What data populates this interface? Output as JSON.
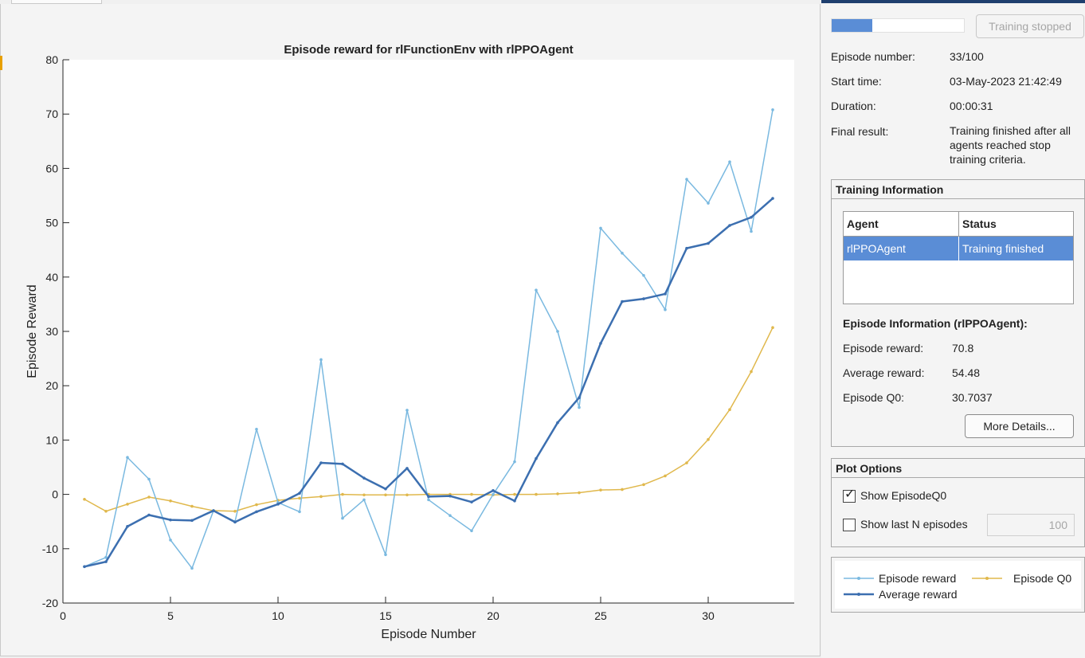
{
  "chart_data": {
    "type": "line",
    "title": "Episode reward for rlFunctionEnv with rlPPOAgent",
    "xlabel": "Episode Number",
    "ylabel": "Episode Reward",
    "xlim": [
      0,
      34
    ],
    "ylim": [
      -20,
      80
    ],
    "xticks": [
      0,
      5,
      10,
      15,
      20,
      25,
      30
    ],
    "yticks": [
      -20,
      -10,
      0,
      10,
      20,
      30,
      40,
      50,
      60,
      70,
      80
    ],
    "grid": false,
    "legend_position": "separate panel, right side",
    "x": [
      1,
      2,
      3,
      4,
      5,
      6,
      7,
      8,
      9,
      10,
      11,
      12,
      13,
      14,
      15,
      16,
      17,
      18,
      19,
      20,
      21,
      22,
      23,
      24,
      25,
      26,
      27,
      28,
      29,
      30,
      31,
      32,
      33
    ],
    "series": [
      {
        "name": "Episode reward",
        "color": "#7ab9e0",
        "marker": "dot",
        "values": [
          -13.3,
          -11.6,
          6.8,
          2.8,
          -8.4,
          -13.6,
          -3,
          -5,
          12,
          -1.5,
          -3.2,
          24.8,
          -4.4,
          -1,
          -11.1,
          15.5,
          -1,
          -3.9,
          -6.7,
          0,
          6,
          37.6,
          30,
          16,
          49,
          44.4,
          40.3,
          34,
          58,
          53.6,
          61.2,
          48.4,
          70.8
        ]
      },
      {
        "name": "Episode Q0",
        "color": "#e0b84c",
        "marker": "dot",
        "values": [
          -0.9,
          -3.1,
          -1.8,
          -0.5,
          -1.2,
          -2.2,
          -3,
          -3.1,
          -1.9,
          -1.1,
          -0.7,
          -0.4,
          0,
          -0.1,
          -0.1,
          -0.1,
          0,
          0,
          0,
          -0.1,
          0,
          0,
          0.1,
          0.3,
          0.8,
          0.9,
          1.8,
          3.4,
          5.8,
          10.1,
          15.6,
          22.6,
          30.7037
        ]
      },
      {
        "name": "Average reward",
        "color": "#3c6fb0",
        "marker": "dot",
        "values": [
          -13.3,
          -12.4,
          -5.9,
          -3.8,
          -4.7,
          -4.8,
          -3,
          -5.1,
          -3.2,
          -1.8,
          0.2,
          5.8,
          5.6,
          3,
          1,
          4.8,
          -0.4,
          -0.3,
          -1.4,
          0.7,
          -1.2,
          6.6,
          13.2,
          17.8,
          27.8,
          35.5,
          36,
          36.9,
          45.3,
          46.2,
          49.5,
          51,
          54.48
        ]
      }
    ]
  },
  "right_panel": {
    "stop_button_label": "Training stopped",
    "progress_fraction": 0.31,
    "episode_number_label": "Episode number:",
    "episode_number_value": "33/100",
    "start_time_label": "Start time:",
    "start_time_value": "03-May-2023 21:42:49",
    "duration_label": "Duration:",
    "duration_value": "00:00:31",
    "final_result_label": "Final result:",
    "final_result_value": "Training finished after all agents reached stop training criteria.",
    "training_info_title": "Training Information",
    "table_headers": {
      "agent": "Agent",
      "status": "Status"
    },
    "table_row": {
      "agent": "rlPPOAgent",
      "status": "Training finished"
    },
    "episode_info_title": "Episode Information (rlPPOAgent):",
    "episode_reward_label": "Episode reward:",
    "episode_reward_value": "70.8",
    "average_reward_label": "Average reward:",
    "average_reward_value": "54.48",
    "episode_q0_label": "Episode Q0:",
    "episode_q0_value": "30.7037",
    "more_details_label": "More Details...",
    "plot_options_title": "Plot Options",
    "show_q0_label": "Show EpisodeQ0",
    "show_q0_checked": true,
    "show_last_n_label": "Show last N episodes",
    "show_last_n_checked": false,
    "last_n_value": "100"
  },
  "legend": {
    "episode_reward": "Episode reward",
    "episode_q0": "Episode Q0",
    "average_reward": "Average reward"
  },
  "colors": {
    "selection": "#5a8dd6",
    "top_accent": "#1f3f6e"
  }
}
